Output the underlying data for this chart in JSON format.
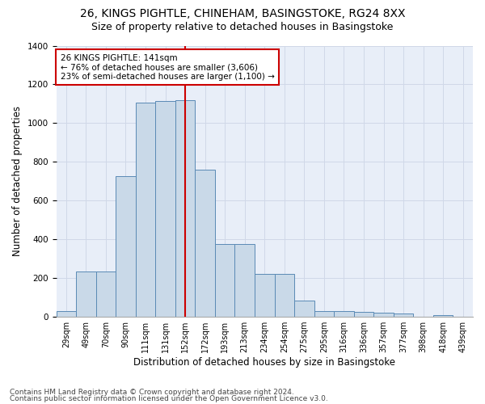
{
  "title1": "26, KINGS PIGHTLE, CHINEHAM, BASINGSTOKE, RG24 8XX",
  "title2": "Size of property relative to detached houses in Basingstoke",
  "xlabel": "Distribution of detached houses by size in Basingstoke",
  "ylabel": "Number of detached properties",
  "categories": [
    "29sqm",
    "49sqm",
    "70sqm",
    "90sqm",
    "111sqm",
    "131sqm",
    "152sqm",
    "172sqm",
    "193sqm",
    "213sqm",
    "234sqm",
    "254sqm",
    "275sqm",
    "295sqm",
    "316sqm",
    "336sqm",
    "357sqm",
    "377sqm",
    "398sqm",
    "418sqm",
    "439sqm"
  ],
  "values": [
    30,
    235,
    235,
    725,
    1105,
    1115,
    1120,
    760,
    375,
    375,
    220,
    220,
    85,
    30,
    30,
    25,
    20,
    15,
    0,
    10,
    0
  ],
  "bar_color": "#c9d9e8",
  "bar_edge_color": "#5a8ab5",
  "vline_x": 6.0,
  "vline_color": "#cc0000",
  "annotation_text": "26 KINGS PIGHTLE: 141sqm\n← 76% of detached houses are smaller (3,606)\n23% of semi-detached houses are larger (1,100) →",
  "annotation_box_color": "#ffffff",
  "annotation_box_edge_color": "#cc0000",
  "footer1": "Contains HM Land Registry data © Crown copyright and database right 2024.",
  "footer2": "Contains public sector information licensed under the Open Government Licence v3.0.",
  "ylim": [
    0,
    1400
  ],
  "grid_color": "#d0d8e8",
  "bg_color": "#e8eef8",
  "title1_fontsize": 10,
  "title2_fontsize": 9,
  "tick_fontsize": 7,
  "ylabel_fontsize": 8.5,
  "xlabel_fontsize": 8.5,
  "footer_fontsize": 6.5
}
